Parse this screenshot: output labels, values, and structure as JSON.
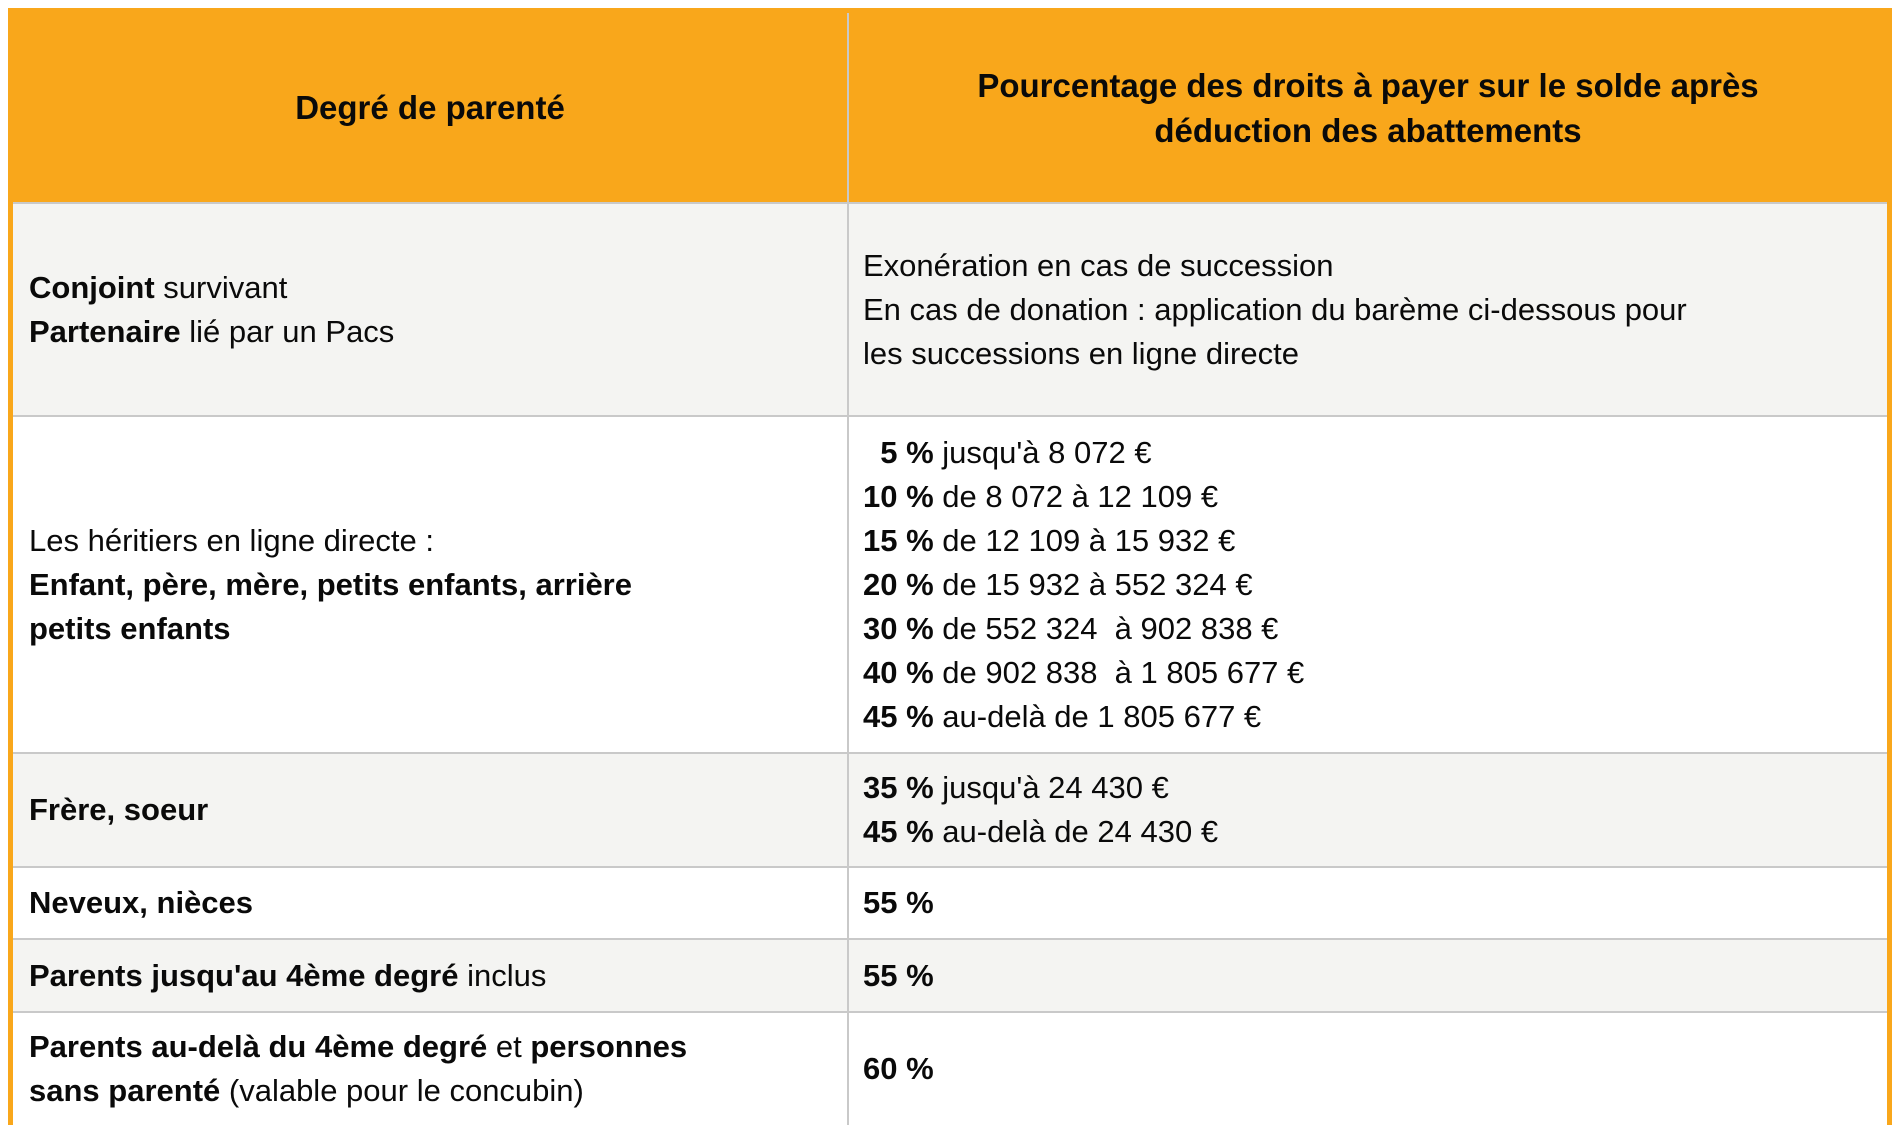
{
  "colors": {
    "header_bg": "#F9A71B",
    "outer_border": "#F9A71B",
    "grid_line": "#C9C9C9",
    "row_alt_bg": "#F4F4F2",
    "row_bg": "#FFFFFF",
    "text": "#0A0A0A"
  },
  "table": {
    "columns": [
      {
        "label": "Degré de parenté"
      },
      {
        "label": "Pourcentage des droits à payer sur le solde après\ndéduction des abattements"
      }
    ],
    "rows": [
      {
        "left": [
          [
            {
              "t": "Conjoint",
              "b": true
            },
            {
              "t": " survivant"
            }
          ],
          [
            {
              "t": "Partenaire",
              "b": true
            },
            {
              "t": " lié par un Pacs"
            }
          ]
        ],
        "right": [
          [
            {
              "t": "Exonération en cas de succession"
            }
          ],
          [
            {
              "t": "En cas de donation : application du barème ci-dessous pour"
            }
          ],
          [
            {
              "t": "les successions en ligne directe"
            }
          ]
        ]
      },
      {
        "left": [
          [
            {
              "t": "Les héritiers en ligne directe :"
            }
          ],
          [
            {
              "t": "Enfant, père, mère, petits enfants, arrière",
              "b": true
            }
          ],
          [
            {
              "t": "petits enfants",
              "b": true
            }
          ]
        ],
        "right": [
          [
            {
              "t": "  5 %",
              "b": true
            },
            {
              "t": " jusqu'à 8 072 €"
            }
          ],
          [
            {
              "t": "10 %",
              "b": true
            },
            {
              "t": " de 8 072 à 12 109 €"
            }
          ],
          [
            {
              "t": "15 %",
              "b": true
            },
            {
              "t": " de 12 109 à 15 932 €"
            }
          ],
          [
            {
              "t": "20 %",
              "b": true
            },
            {
              "t": " de 15 932 à 552 324 €"
            }
          ],
          [
            {
              "t": "30 %",
              "b": true
            },
            {
              "t": " de 552 324  à 902 838 €"
            }
          ],
          [
            {
              "t": "40 %",
              "b": true
            },
            {
              "t": " de 902 838  à 1 805 677 €"
            }
          ],
          [
            {
              "t": "45 %",
              "b": true
            },
            {
              "t": " au-delà de 1 805 677 €"
            }
          ]
        ]
      },
      {
        "left": [
          [
            {
              "t": "Frère, soeur",
              "b": true
            }
          ]
        ],
        "right": [
          [
            {
              "t": "35 %",
              "b": true
            },
            {
              "t": " jusqu'à 24 430 €"
            }
          ],
          [
            {
              "t": "45 %",
              "b": true
            },
            {
              "t": " au-delà de 24 430 €"
            }
          ]
        ]
      },
      {
        "left": [
          [
            {
              "t": "Neveux, nièces",
              "b": true
            }
          ]
        ],
        "right": [
          [
            {
              "t": "55 %",
              "b": true
            }
          ]
        ]
      },
      {
        "left": [
          [
            {
              "t": "Parents jusqu'au 4ème degré",
              "b": true
            },
            {
              "t": " inclus"
            }
          ]
        ],
        "right": [
          [
            {
              "t": "55 %",
              "b": true
            }
          ]
        ]
      },
      {
        "left": [
          [
            {
              "t": "Parents au-delà du 4ème degré",
              "b": true
            },
            {
              "t": " et "
            },
            {
              "t": "personnes",
              "b": true
            }
          ],
          [
            {
              "t": "sans parenté",
              "b": true
            },
            {
              "t": " (valable pour le concubin)"
            }
          ]
        ],
        "right": [
          [
            {
              "t": "60 %",
              "b": true
            }
          ]
        ]
      }
    ]
  }
}
